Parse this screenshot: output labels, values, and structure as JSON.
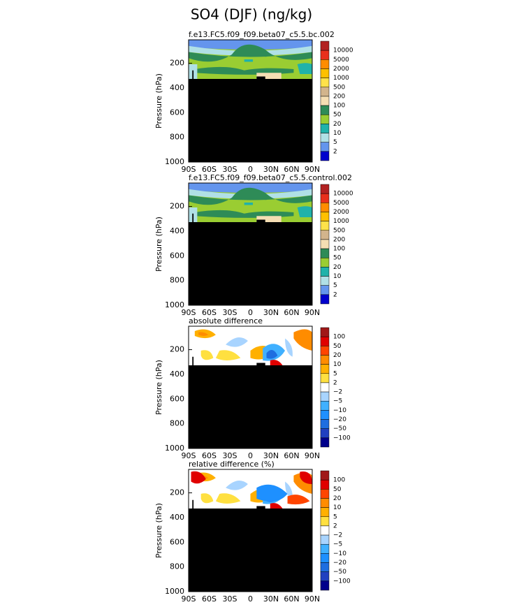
{
  "title": "SO4 (DJF) (ng/kg)",
  "chart_data": [
    {
      "type": "contour",
      "title": "f.e13.FC5.f09_f09.beta07_c5.5.bc.002",
      "ylabel": "Pressure (hPa)",
      "xlim": [
        -90,
        90
      ],
      "xticks": [
        {
          "value": -90,
          "label": "90S"
        },
        {
          "value": -60,
          "label": "60S"
        },
        {
          "value": -30,
          "label": "30S"
        },
        0,
        {
          "value": 30,
          "label": "30N"
        },
        {
          "value": 60,
          "label": "60N"
        },
        {
          "value": 90,
          "label": "90N"
        }
      ],
      "ylim": [
        1000,
        10
      ],
      "yticks": [
        200,
        400,
        600,
        800,
        1000
      ],
      "levels": [
        10000,
        5000,
        2000,
        1000,
        500,
        200,
        100,
        50,
        20,
        10,
        5,
        2
      ],
      "colors": [
        "#b22222",
        "#e8301c",
        "#ff8c00",
        "#ffc000",
        "#ffe24a",
        "#d2b48c",
        "#f5deb3",
        "#2e8b57",
        "#9acd32",
        "#20b2aa",
        "#b0e0e6",
        "#6495ed",
        "#0000cd"
      ]
    },
    {
      "type": "contour",
      "title": "f.e13.FC5.f09_f09.beta07_c5.5.control.002",
      "ylabel": "Pressure (hPa)",
      "xlim": [
        -90,
        90
      ],
      "xticks": [
        {
          "value": -90,
          "label": "90S"
        },
        {
          "value": -60,
          "label": "60S"
        },
        {
          "value": -30,
          "label": "30S"
        },
        0,
        {
          "value": 30,
          "label": "30N"
        },
        {
          "value": 60,
          "label": "60N"
        },
        {
          "value": 90,
          "label": "90N"
        }
      ],
      "ylim": [
        1000,
        10
      ],
      "yticks": [
        200,
        400,
        600,
        800,
        1000
      ],
      "levels": [
        10000,
        5000,
        2000,
        1000,
        500,
        200,
        100,
        50,
        20,
        10,
        5,
        2
      ],
      "colors": [
        "#b22222",
        "#e8301c",
        "#ff8c00",
        "#ffc000",
        "#ffe24a",
        "#d2b48c",
        "#f5deb3",
        "#2e8b57",
        "#9acd32",
        "#20b2aa",
        "#b0e0e6",
        "#6495ed",
        "#0000cd"
      ]
    },
    {
      "type": "contour",
      "title": "absolute difference",
      "ylabel": "Pressure (hPa)",
      "xlim": [
        -90,
        90
      ],
      "xticks": [
        {
          "value": -90,
          "label": "90S"
        },
        {
          "value": -60,
          "label": "60S"
        },
        {
          "value": -30,
          "label": "30S"
        },
        0,
        {
          "value": 30,
          "label": "30N"
        },
        {
          "value": 60,
          "label": "60N"
        },
        {
          "value": 90,
          "label": "90N"
        }
      ],
      "ylim": [
        1000,
        10
      ],
      "yticks": [
        200,
        400,
        600,
        800,
        1000
      ],
      "levels": [
        100,
        50,
        20,
        10,
        5,
        2,
        -2,
        -5,
        -10,
        -20,
        -50,
        -100
      ],
      "colors": [
        "#a01818",
        "#e00000",
        "#ff4500",
        "#ff8c00",
        "#ffb000",
        "#ffe040",
        "#ffffff",
        "#a8d4ff",
        "#40b0ff",
        "#1e90ff",
        "#1e6ee0",
        "#2040c0",
        "#00008b"
      ]
    },
    {
      "type": "contour",
      "title": "relative difference (%)",
      "ylabel": "Pressure (hPa)",
      "xlim": [
        -90,
        90
      ],
      "xticks": [
        {
          "value": -90,
          "label": "90S"
        },
        {
          "value": -60,
          "label": "60S"
        },
        {
          "value": -30,
          "label": "30S"
        },
        0,
        {
          "value": 30,
          "label": "30N"
        },
        {
          "value": 60,
          "label": "60N"
        },
        {
          "value": 90,
          "label": "90N"
        }
      ],
      "ylim": [
        1000,
        10
      ],
      "yticks": [
        200,
        400,
        600,
        800,
        1000
      ],
      "levels": [
        100,
        50,
        20,
        10,
        5,
        2,
        -2,
        -5,
        -10,
        -20,
        -50,
        -100
      ],
      "colors": [
        "#a01818",
        "#e00000",
        "#ff4500",
        "#ff8c00",
        "#ffb000",
        "#ffe040",
        "#ffffff",
        "#a8d4ff",
        "#40b0ff",
        "#1e90ff",
        "#1e6ee0",
        "#2040c0",
        "#00008b"
      ]
    }
  ]
}
